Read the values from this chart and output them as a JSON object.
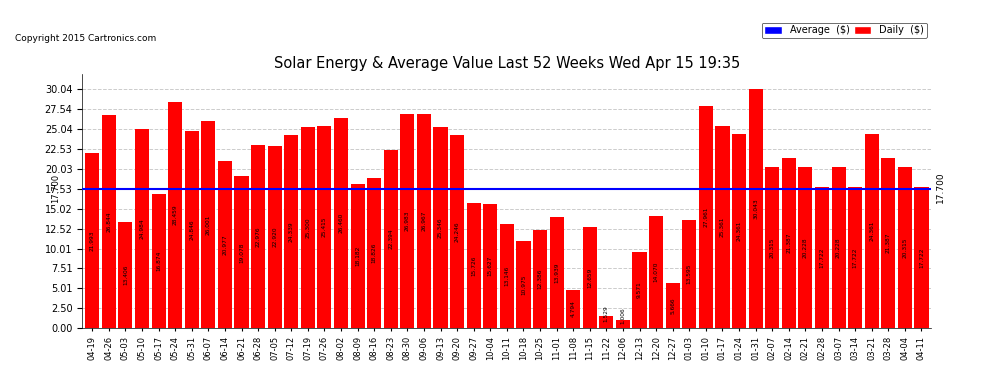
{
  "title": "Solar Energy & Average Value Last 52 Weeks Wed Apr 15 19:35",
  "copyright": "Copyright 2015 Cartronics.com",
  "bar_color": "#ff0000",
  "average_color": "#0000ff",
  "average_value": 17.53,
  "background_color": "#ffffff",
  "grid_color": "#cccccc",
  "yticks": [
    0.0,
    2.5,
    5.01,
    7.51,
    10.01,
    12.52,
    15.02,
    17.53,
    20.03,
    22.53,
    25.04,
    27.54,
    30.04
  ],
  "categories": [
    "04-19",
    "04-26",
    "05-03",
    "05-10",
    "05-17",
    "05-24",
    "05-31",
    "06-07",
    "06-14",
    "06-21",
    "06-28",
    "07-05",
    "07-12",
    "07-19",
    "07-26",
    "08-02",
    "08-09",
    "08-16",
    "08-23",
    "08-30",
    "09-06",
    "09-13",
    "09-20",
    "09-27",
    "10-04",
    "10-11",
    "10-18",
    "10-25",
    "11-01",
    "11-08",
    "11-15",
    "11-22",
    "12-06",
    "12-13",
    "12-20",
    "12-27",
    "01-03",
    "01-10",
    "01-17",
    "01-24",
    "01-31",
    "02-07",
    "02-14",
    "02-21",
    "02-28",
    "03-07",
    "03-14",
    "03-21",
    "03-28",
    "04-04",
    "04-11"
  ],
  "values": [
    21.993,
    26.844,
    13.406,
    24.984,
    16.874,
    28.459,
    24.846,
    26.001,
    20.977,
    19.078,
    22.976,
    22.92,
    24.339,
    25.3,
    25.415,
    26.46,
    18.182,
    18.826,
    22.394,
    26.983,
    26.967,
    25.346,
    24.246,
    15.726,
    15.627,
    13.146,
    10.975,
    12.386,
    13.939,
    4.794,
    12.659,
    1.529,
    1.006,
    9.571,
    14.07,
    5.666,
    13.595,
    27.961,
    25.361,
    24.361,
    30.043,
    20.315,
    21.387,
    20.228,
    17.722,
    20.228,
    17.722,
    24.361,
    21.387,
    20.315,
    17.722
  ]
}
